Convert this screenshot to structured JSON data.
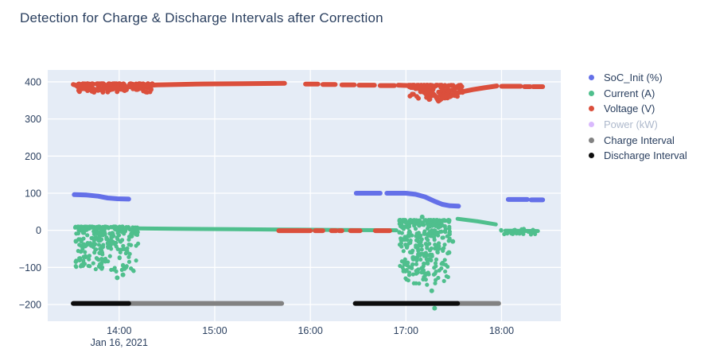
{
  "chart_data": {
    "type": "scatter",
    "title": "Detection for Charge & Discharge Intervals after Correction",
    "legend_position": "right",
    "grid": true,
    "plot_bg": "#E5ECF6",
    "grid_color": "#ffffff",
    "text_color": "#2a3f5f",
    "x_axis": {
      "date_label": "Jan 16, 2021",
      "range_hours": [
        13.253,
        18.62
      ],
      "ticks": [
        {
          "hour": 14,
          "label": "14:00"
        },
        {
          "hour": 15,
          "label": "15:00"
        },
        {
          "hour": 16,
          "label": "16:00"
        },
        {
          "hour": 17,
          "label": "17:00"
        },
        {
          "hour": 18,
          "label": "18:00"
        }
      ]
    },
    "y_axis": {
      "range": [
        -245,
        432
      ],
      "ticks": [
        {
          "value": 400,
          "label": "400"
        },
        {
          "value": 300,
          "label": "300"
        },
        {
          "value": 200,
          "label": "200"
        },
        {
          "value": 100,
          "label": "100"
        },
        {
          "value": 0,
          "label": "0"
        },
        {
          "value": -100,
          "label": "−100"
        },
        {
          "value": -200,
          "label": "−200"
        }
      ]
    },
    "series": [
      {
        "name": "SoC_Init (%)",
        "color": "#6470E8",
        "type": "scatter-line",
        "width": 6,
        "lines": [
          [
            [
              13.53,
              96
            ],
            [
              13.66,
              95
            ],
            [
              13.78,
              92
            ],
            [
              13.88,
              87
            ],
            [
              13.98,
              85
            ],
            [
              14.1,
              84
            ]
          ],
          [
            [
              16.48,
              100
            ],
            [
              16.73,
              100
            ]
          ],
          [
            [
              16.8,
              100
            ],
            [
              17.0,
              100
            ],
            [
              17.1,
              97
            ],
            [
              17.2,
              90
            ],
            [
              17.3,
              78
            ],
            [
              17.38,
              70
            ],
            [
              17.46,
              66
            ],
            [
              17.55,
              65
            ]
          ],
          [
            [
              18.07,
              83
            ],
            [
              18.27,
              83
            ]
          ],
          [
            [
              18.31,
              82
            ],
            [
              18.43,
              82
            ]
          ]
        ]
      },
      {
        "name": "Current (A)",
        "color": "#4FBF8D",
        "type": "scatter-line",
        "width": 5,
        "lines": [
          [
            [
              14.17,
              5
            ],
            [
              14.6,
              4
            ],
            [
              15.2,
              3
            ],
            [
              15.7,
              2
            ],
            [
              16.3,
              1
            ],
            [
              16.9,
              0
            ]
          ],
          [
            [
              17.54,
              31
            ],
            [
              17.75,
              24
            ],
            [
              17.94,
              16
            ]
          ],
          [
            [
              18.04,
              -1
            ],
            [
              18.38,
              -2
            ]
          ]
        ],
        "clusters": [
          {
            "seed": 11,
            "t": [
              13.54,
              14.2
            ],
            "v": [
              10,
              -112
            ],
            "bias": 2.0,
            "n": 300,
            "r": 2.6,
            "extra": [
              [
                13.98,
                -128
              ],
              [
                14.04,
                -120
              ],
              [
                13.62,
                -95
              ]
            ]
          },
          {
            "seed": 22,
            "t": [
              16.93,
              17.46
            ],
            "v": [
              28,
              -148
            ],
            "bias": 2.0,
            "n": 330,
            "r": 2.6,
            "extra": [
              [
                17.27,
                -163
              ],
              [
                17.3,
                -210
              ],
              [
                17.17,
                36
              ],
              [
                17.45,
                -60
              ],
              [
                17.49,
                -30
              ]
            ]
          },
          {
            "seed": 33,
            "t": [
              17.96,
              18.4
            ],
            "v": [
              4,
              -12
            ],
            "bias": 1.2,
            "n": 26,
            "r": 2.6,
            "extra": []
          }
        ]
      },
      {
        "name": "Voltage (V)",
        "color": "#DB4F3C",
        "type": "scatter-line",
        "width": 6,
        "lines": [
          [
            [
              13.52,
              393
            ],
            [
              13.57,
              389
            ],
            [
              13.62,
              384
            ],
            [
              13.67,
              388
            ],
            [
              13.72,
              381
            ],
            [
              13.78,
              377
            ],
            [
              13.84,
              383
            ],
            [
              13.9,
              378
            ],
            [
              13.96,
              384
            ],
            [
              14.02,
              380
            ],
            [
              14.08,
              386
            ],
            [
              14.2,
              389
            ],
            [
              14.4,
              392
            ],
            [
              14.8,
              394
            ],
            [
              15.3,
              395
            ],
            [
              15.73,
              396
            ]
          ],
          [
            [
              15.95,
              394
            ],
            [
              16.08,
              394
            ]
          ],
          [
            [
              16.13,
              393
            ],
            [
              16.26,
              393
            ]
          ],
          [
            [
              16.33,
              392
            ],
            [
              16.46,
              392
            ]
          ],
          [
            [
              16.51,
              391
            ],
            [
              16.67,
              391
            ]
          ],
          [
            [
              16.73,
              390
            ],
            [
              16.88,
              390
            ]
          ],
          [
            [
              16.92,
              391
            ],
            [
              17.02,
              390
            ],
            [
              17.08,
              387
            ],
            [
              17.12,
              382
            ],
            [
              17.16,
              386
            ],
            [
              17.2,
              379
            ],
            [
              17.24,
              373
            ],
            [
              17.28,
              369
            ],
            [
              17.31,
              361
            ],
            [
              17.34,
              348
            ],
            [
              17.38,
              356
            ],
            [
              17.42,
              364
            ],
            [
              17.46,
              360
            ],
            [
              17.52,
              369
            ],
            [
              17.6,
              374
            ],
            [
              17.7,
              379
            ],
            [
              17.82,
              384
            ],
            [
              17.95,
              389
            ]
          ],
          [
            [
              18.0,
              388
            ],
            [
              18.2,
              388
            ]
          ],
          [
            [
              18.24,
              387
            ],
            [
              18.3,
              387
            ]
          ],
          [
            [
              18.33,
              387
            ],
            [
              18.43,
              387
            ]
          ],
          [
            [
              15.67,
              -1
            ],
            [
              16.0,
              -1
            ]
          ],
          [
            [
              16.05,
              -1
            ],
            [
              16.13,
              -1
            ]
          ],
          [
            [
              16.22,
              -1
            ],
            [
              16.27,
              -1
            ]
          ],
          [
            [
              16.3,
              -1
            ],
            [
              16.33,
              -1
            ]
          ],
          [
            [
              16.42,
              -1
            ],
            [
              16.52,
              -1
            ]
          ],
          [
            [
              16.68,
              -1
            ],
            [
              16.83,
              -1
            ]
          ]
        ],
        "clusters": [
          {
            "seed": 44,
            "t": [
              13.55,
              14.35
            ],
            "v": [
              395,
              372
            ],
            "bias": 2.3,
            "n": 160,
            "r": 3,
            "extra": []
          },
          {
            "seed": 55,
            "t": [
              17.02,
              17.6
            ],
            "v": [
              391,
              352
            ],
            "bias": 2.6,
            "n": 120,
            "r": 3,
            "extra": []
          }
        ]
      },
      {
        "name": "Power (kW)",
        "color": "#AB63FA",
        "type": "scatter-line",
        "width": 5,
        "visible": false,
        "lines": []
      },
      {
        "name": "Charge Interval",
        "color": "#828282",
        "type": "interval",
        "value": -197,
        "width": 6,
        "segments": [
          [
            14.1,
            15.7
          ],
          [
            17.54,
            17.97
          ]
        ]
      },
      {
        "name": "Discharge Interval",
        "color": "#0d0d0d",
        "type": "interval",
        "value": -197,
        "width": 6,
        "segments": [
          [
            13.52,
            14.1
          ],
          [
            16.47,
            17.54
          ]
        ]
      }
    ]
  }
}
